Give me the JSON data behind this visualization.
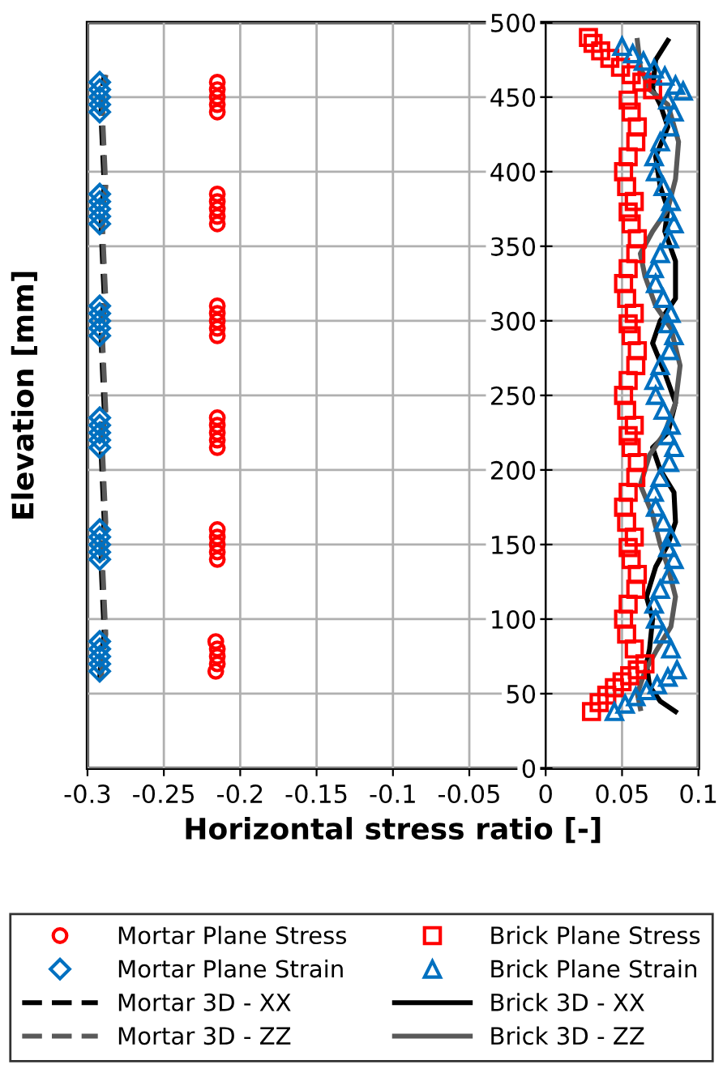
{
  "chart_data": {
    "type": "scatter",
    "xlabel": "Horizontal stress ratio [-]",
    "ylabel": "Elevation [mm]",
    "xlim": [
      -0.3,
      0.1
    ],
    "ylim": [
      0,
      500
    ],
    "xticks": [
      -0.3,
      -0.25,
      -0.2,
      -0.15,
      -0.1,
      -0.05,
      0,
      0.05,
      0.1
    ],
    "yticks": [
      0,
      50,
      100,
      150,
      200,
      250,
      300,
      350,
      400,
      450,
      500
    ],
    "grid": true,
    "legend": "bottom",
    "series": [
      {
        "name": "Mortar Plane Stress",
        "marker": "circle",
        "color": "#ff0000",
        "x": [
          -0.216,
          -0.215,
          -0.215,
          -0.215,
          -0.216,
          -0.215,
          -0.215,
          -0.215,
          -0.215,
          -0.215,
          -0.215,
          -0.215,
          -0.215,
          -0.215,
          -0.215,
          -0.215,
          -0.215,
          -0.215,
          -0.215,
          -0.215,
          -0.215,
          -0.215,
          -0.215,
          -0.215,
          -0.215,
          -0.215,
          -0.215,
          -0.215,
          -0.215,
          -0.215
        ],
        "values": [
          65,
          70,
          75,
          80,
          85,
          140,
          145,
          150,
          155,
          160,
          215,
          220,
          225,
          230,
          235,
          290,
          295,
          300,
          305,
          310,
          365,
          370,
          375,
          380,
          385,
          440,
          445,
          450,
          455,
          460
        ]
      },
      {
        "name": "Mortar Plane Strain",
        "marker": "diamond",
        "color": "#0070c0",
        "x": [
          -0.292,
          -0.292,
          -0.292,
          -0.292,
          -0.292,
          -0.292,
          -0.292,
          -0.292,
          -0.292,
          -0.292,
          -0.292,
          -0.292,
          -0.292,
          -0.292,
          -0.292,
          -0.292,
          -0.292,
          -0.292,
          -0.292,
          -0.292,
          -0.292,
          -0.292,
          -0.292,
          -0.292,
          -0.292,
          -0.292,
          -0.292,
          -0.292,
          -0.292,
          -0.292
        ],
        "values": [
          65,
          70,
          75,
          80,
          85,
          140,
          145,
          150,
          155,
          160,
          215,
          220,
          225,
          230,
          235,
          290,
          295,
          300,
          305,
          310,
          365,
          370,
          375,
          380,
          385,
          440,
          445,
          450,
          455,
          460
        ]
      },
      {
        "name": "Mortar 3D - XX",
        "type": "line",
        "line_style": "dashed",
        "color": "#000000",
        "x": [
          -0.292,
          -0.291,
          -0.289,
          -0.29,
          -0.291,
          -0.291,
          -0.289,
          -0.29,
          -0.291,
          -0.291,
          -0.289,
          -0.29,
          -0.291,
          -0.291,
          -0.289,
          -0.29,
          -0.291,
          -0.291,
          -0.289,
          -0.29,
          -0.291,
          -0.291,
          -0.289
        ],
        "values": [
          60,
          75,
          90,
          112,
          135,
          150,
          165,
          187,
          210,
          225,
          240,
          262,
          285,
          300,
          315,
          337,
          360,
          375,
          390,
          412,
          435,
          450,
          465
        ]
      },
      {
        "name": "Mortar 3D - ZZ",
        "type": "line",
        "line_style": "dashed",
        "color": "#595959",
        "x": [
          -0.291,
          -0.29,
          -0.288,
          -0.289,
          -0.29,
          -0.29,
          -0.288,
          -0.289,
          -0.29,
          -0.29,
          -0.288,
          -0.289,
          -0.29,
          -0.29,
          -0.288,
          -0.289,
          -0.29,
          -0.29,
          -0.288,
          -0.289,
          -0.29,
          -0.29,
          -0.288
        ],
        "values": [
          60,
          75,
          90,
          112,
          135,
          150,
          165,
          187,
          210,
          225,
          240,
          262,
          285,
          300,
          315,
          337,
          360,
          375,
          390,
          412,
          435,
          450,
          465
        ]
      },
      {
        "name": "Brick Plane Stress",
        "marker": "square",
        "color": "#ff0000",
        "x": [
          0.03,
          0.035,
          0.04,
          0.045,
          0.05,
          0.055,
          0.06,
          0.065,
          0.058,
          0.053,
          0.051,
          0.054,
          0.059,
          0.06,
          0.056,
          0.054,
          0.058,
          0.053,
          0.051,
          0.054,
          0.059,
          0.06,
          0.056,
          0.054,
          0.058,
          0.053,
          0.051,
          0.054,
          0.059,
          0.06,
          0.056,
          0.054,
          0.058,
          0.053,
          0.051,
          0.054,
          0.059,
          0.06,
          0.056,
          0.054,
          0.058,
          0.053,
          0.051,
          0.054,
          0.059,
          0.06,
          0.056,
          0.054,
          0.07,
          0.063,
          0.056,
          0.049,
          0.042,
          0.036,
          0.031,
          0.028
        ],
        "values": [
          38,
          44,
          49,
          54,
          58,
          62,
          66,
          70,
          80,
          90,
          100,
          110,
          120,
          130,
          140,
          148,
          155,
          165,
          175,
          185,
          195,
          205,
          215,
          223,
          230,
          240,
          250,
          260,
          270,
          280,
          290,
          298,
          305,
          315,
          325,
          335,
          345,
          355,
          365,
          373,
          380,
          390,
          400,
          410,
          420,
          430,
          440,
          448,
          455,
          460,
          465,
          470,
          476,
          481,
          486,
          490
        ]
      },
      {
        "name": "Brick Plane Strain",
        "marker": "triangle",
        "color": "#0070c0",
        "x": [
          0.045,
          0.052,
          0.059,
          0.066,
          0.073,
          0.08,
          0.086,
          0.082,
          0.077,
          0.072,
          0.071,
          0.075,
          0.081,
          0.084,
          0.08,
          0.082,
          0.077,
          0.072,
          0.071,
          0.075,
          0.081,
          0.084,
          0.08,
          0.082,
          0.077,
          0.072,
          0.071,
          0.075,
          0.081,
          0.084,
          0.08,
          0.082,
          0.077,
          0.072,
          0.071,
          0.075,
          0.081,
          0.084,
          0.08,
          0.082,
          0.077,
          0.072,
          0.071,
          0.075,
          0.081,
          0.084,
          0.08,
          0.09,
          0.085,
          0.078,
          0.071,
          0.064,
          0.057,
          0.05
        ],
        "values": [
          38,
          43,
          48,
          52,
          56,
          61,
          66,
          80,
          90,
          100,
          110,
          120,
          130,
          140,
          148,
          155,
          165,
          175,
          185,
          195,
          205,
          215,
          223,
          230,
          240,
          250,
          260,
          270,
          280,
          290,
          298,
          305,
          315,
          325,
          335,
          345,
          355,
          365,
          373,
          380,
          390,
          400,
          410,
          420,
          430,
          440,
          448,
          454,
          458,
          464,
          469,
          474,
          479,
          484
        ]
      },
      {
        "name": "Brick 3D - XX",
        "type": "line",
        "line_style": "solid",
        "color": "#000000",
        "x": [
          0.085,
          0.075,
          0.068,
          0.066,
          0.068,
          0.07,
          0.066,
          0.072,
          0.08,
          0.085,
          0.084,
          0.075,
          0.07,
          0.08,
          0.085,
          0.078,
          0.07,
          0.075,
          0.085,
          0.085,
          0.078,
          0.08,
          0.075,
          0.072,
          0.08,
          0.075,
          0.07,
          0.072,
          0.08
        ],
        "values": [
          38,
          45,
          55,
          70,
          80,
          100,
          115,
          135,
          150,
          165,
          185,
          200,
          215,
          225,
          245,
          265,
          285,
          300,
          315,
          340,
          360,
          375,
          390,
          410,
          430,
          445,
          455,
          475,
          488
        ]
      },
      {
        "name": "Brick 3D - ZZ",
        "type": "line",
        "line_style": "solid",
        "color": "#595959",
        "x": [
          0.062,
          0.06,
          0.065,
          0.072,
          0.082,
          0.085,
          0.08,
          0.075,
          0.07,
          0.062,
          0.068,
          0.078,
          0.085,
          0.088,
          0.082,
          0.072,
          0.065,
          0.062,
          0.07,
          0.08,
          0.085,
          0.087,
          0.08,
          0.068,
          0.062,
          0.06
        ],
        "values": [
          40,
          50,
          65,
          78,
          95,
          115,
          135,
          150,
          170,
          190,
          210,
          225,
          245,
          270,
          295,
          310,
          330,
          345,
          360,
          375,
          395,
          420,
          445,
          455,
          470,
          488
        ]
      }
    ]
  }
}
